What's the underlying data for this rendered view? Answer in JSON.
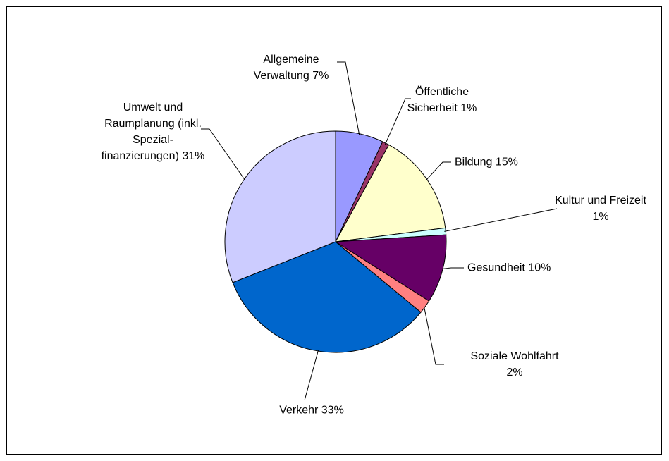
{
  "chart_data": {
    "type": "pie",
    "categories": [
      "Allgemeine Verwaltung",
      "Öffentliche Sicherheit",
      "Bildung",
      "Kultur und Freizeit",
      "Gesundheit",
      "Soziale Wohlfahrt",
      "Verkehr",
      "Umwelt und Raumplanung (inkl. Spezial- finanzierungen)"
    ],
    "values": [
      7,
      1,
      15,
      1,
      10,
      2,
      33,
      31
    ],
    "value_labels": [
      "7%",
      "1%",
      "15%",
      "1%",
      "10%",
      "2%",
      "33%",
      "31%"
    ],
    "colors": [
      "#9999ff",
      "#993366",
      "#ffffcc",
      "#ccffff",
      "#660066",
      "#ff8080",
      "#0066cc",
      "#ccccff"
    ]
  }
}
